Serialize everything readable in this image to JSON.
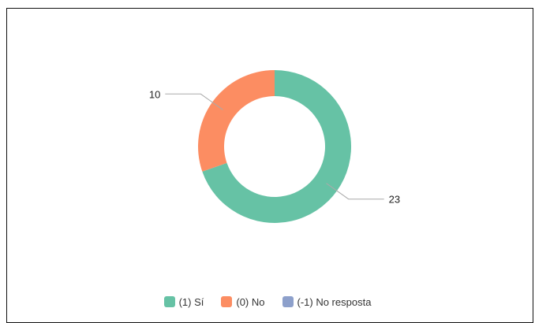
{
  "chart_data": {
    "type": "pie",
    "variant": "donut",
    "categories": [
      "(1) Sí",
      "(0) No",
      "(-1) No resposta"
    ],
    "values": [
      23,
      10,
      0
    ],
    "colors": [
      "#66c2a5",
      "#fc8d62",
      "#8da0cb"
    ],
    "data_labels": [
      "23",
      "10",
      ""
    ],
    "legend_position": "bottom"
  },
  "legend": {
    "items": [
      {
        "label": "(1) Sí",
        "color": "#66c2a5"
      },
      {
        "label": "(0) No",
        "color": "#fc8d62"
      },
      {
        "label": "(-1) No resposta",
        "color": "#8da0cb"
      }
    ]
  }
}
